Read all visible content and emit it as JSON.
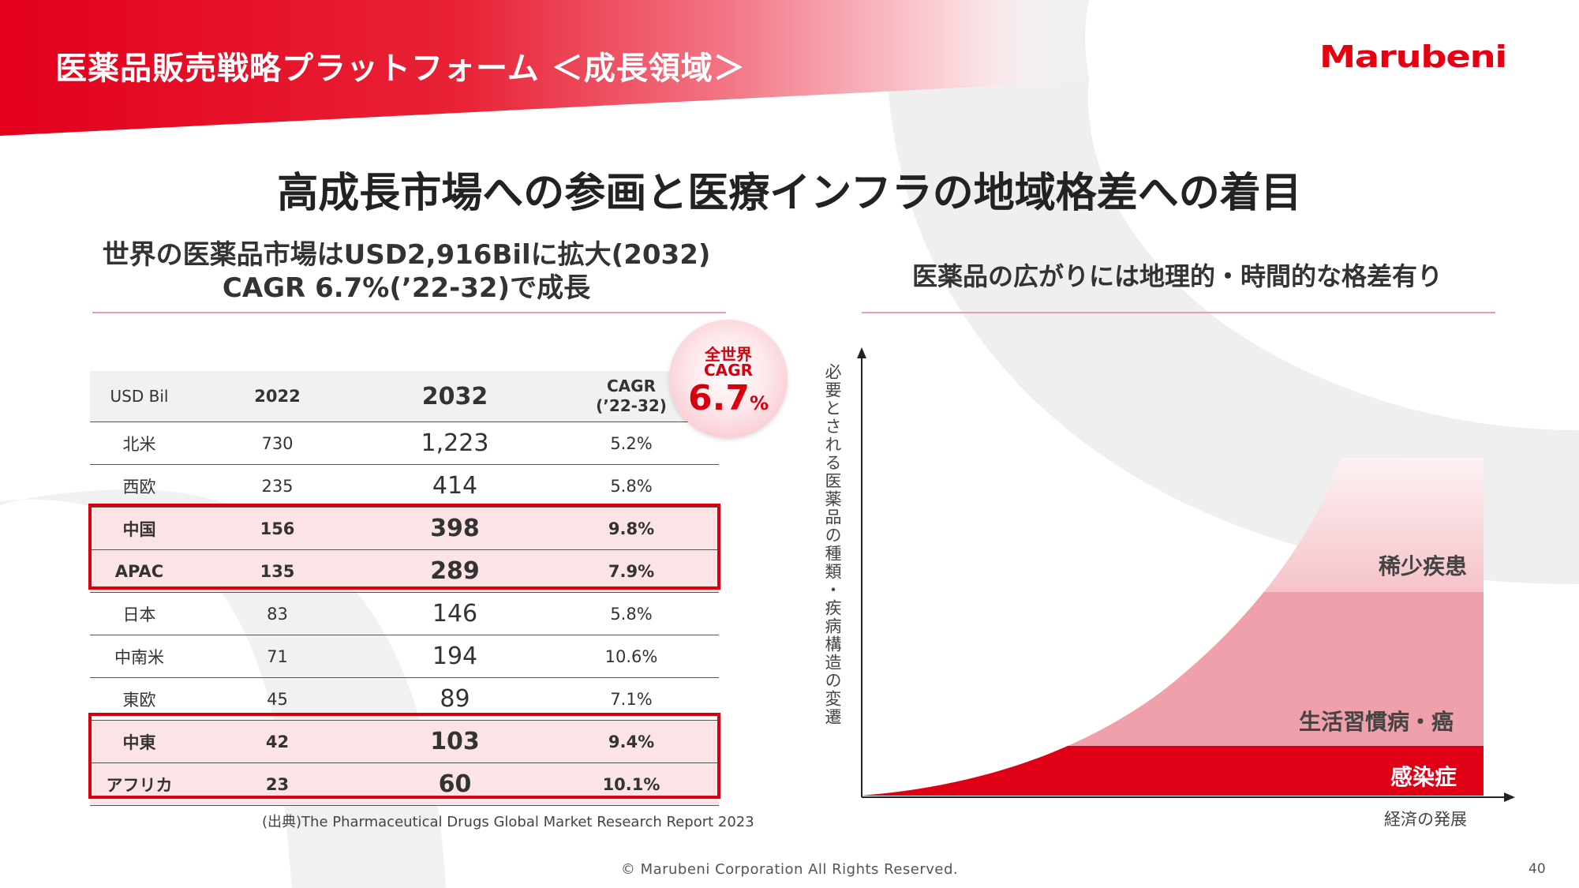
{
  "header": {
    "title": "医薬品販売戦略プラットフォーム ＜成長領域＞",
    "logo_text": "Marubeni",
    "brand_color": "#e60012"
  },
  "main_title": "高成長市場への参画と医療インフラの地域格差への着目",
  "left": {
    "heading_line1": "世界の医薬品市場はUSD2,916Bilに拡大(2032)",
    "heading_line2": "CAGR 6.7%(’22-32)で成長",
    "badge": {
      "line1": "全世界",
      "line2": "CAGR",
      "value": "6.7",
      "unit": "%"
    },
    "table": {
      "headers": [
        "USD Bil",
        "2022",
        "2032",
        "CAGR",
        "(’22-32)"
      ],
      "rows": [
        {
          "region": "北米",
          "y2022": "730",
          "y2032": "1,223",
          "cagr": "5.2%",
          "highlight": false
        },
        {
          "region": "西欧",
          "y2022": "235",
          "y2032": "414",
          "cagr": "5.8%",
          "highlight": false
        },
        {
          "region": "中国",
          "y2022": "156",
          "y2032": "398",
          "cagr": "9.8%",
          "highlight": true
        },
        {
          "region": "APAC",
          "y2022": "135",
          "y2032": "289",
          "cagr": "7.9%",
          "highlight": true
        },
        {
          "region": "日本",
          "y2022": "83",
          "y2032": "146",
          "cagr": "5.8%",
          "highlight": false
        },
        {
          "region": "中南米",
          "y2022": "71",
          "y2032": "194",
          "cagr": "10.6%",
          "highlight": false
        },
        {
          "region": "東欧",
          "y2022": "45",
          "y2032": "89",
          "cagr": "7.1%",
          "highlight": false
        },
        {
          "region": "中東",
          "y2022": "42",
          "y2032": "103",
          "cagr": "9.4%",
          "highlight": true
        },
        {
          "region": "アフリカ",
          "y2022": "23",
          "y2032": "60",
          "cagr": "10.1%",
          "highlight": true
        }
      ]
    },
    "source": "(出典)The Pharmaceutical Drugs Global Market Research Report 2023"
  },
  "right": {
    "heading": "医薬品の広がりには地理的・時間的な格差有り",
    "y_axis_label": "必要とされる医薬品の種類・疾病構造の変遷",
    "x_axis_label": "経済の発展",
    "bands": {
      "top": "稀少疾患",
      "middle": "生活習慣病・癌",
      "bottom": "感染症"
    }
  },
  "footer": {
    "copyright": "© Marubeni Corporation All Rights Reserved.",
    "page_number": "40"
  }
}
